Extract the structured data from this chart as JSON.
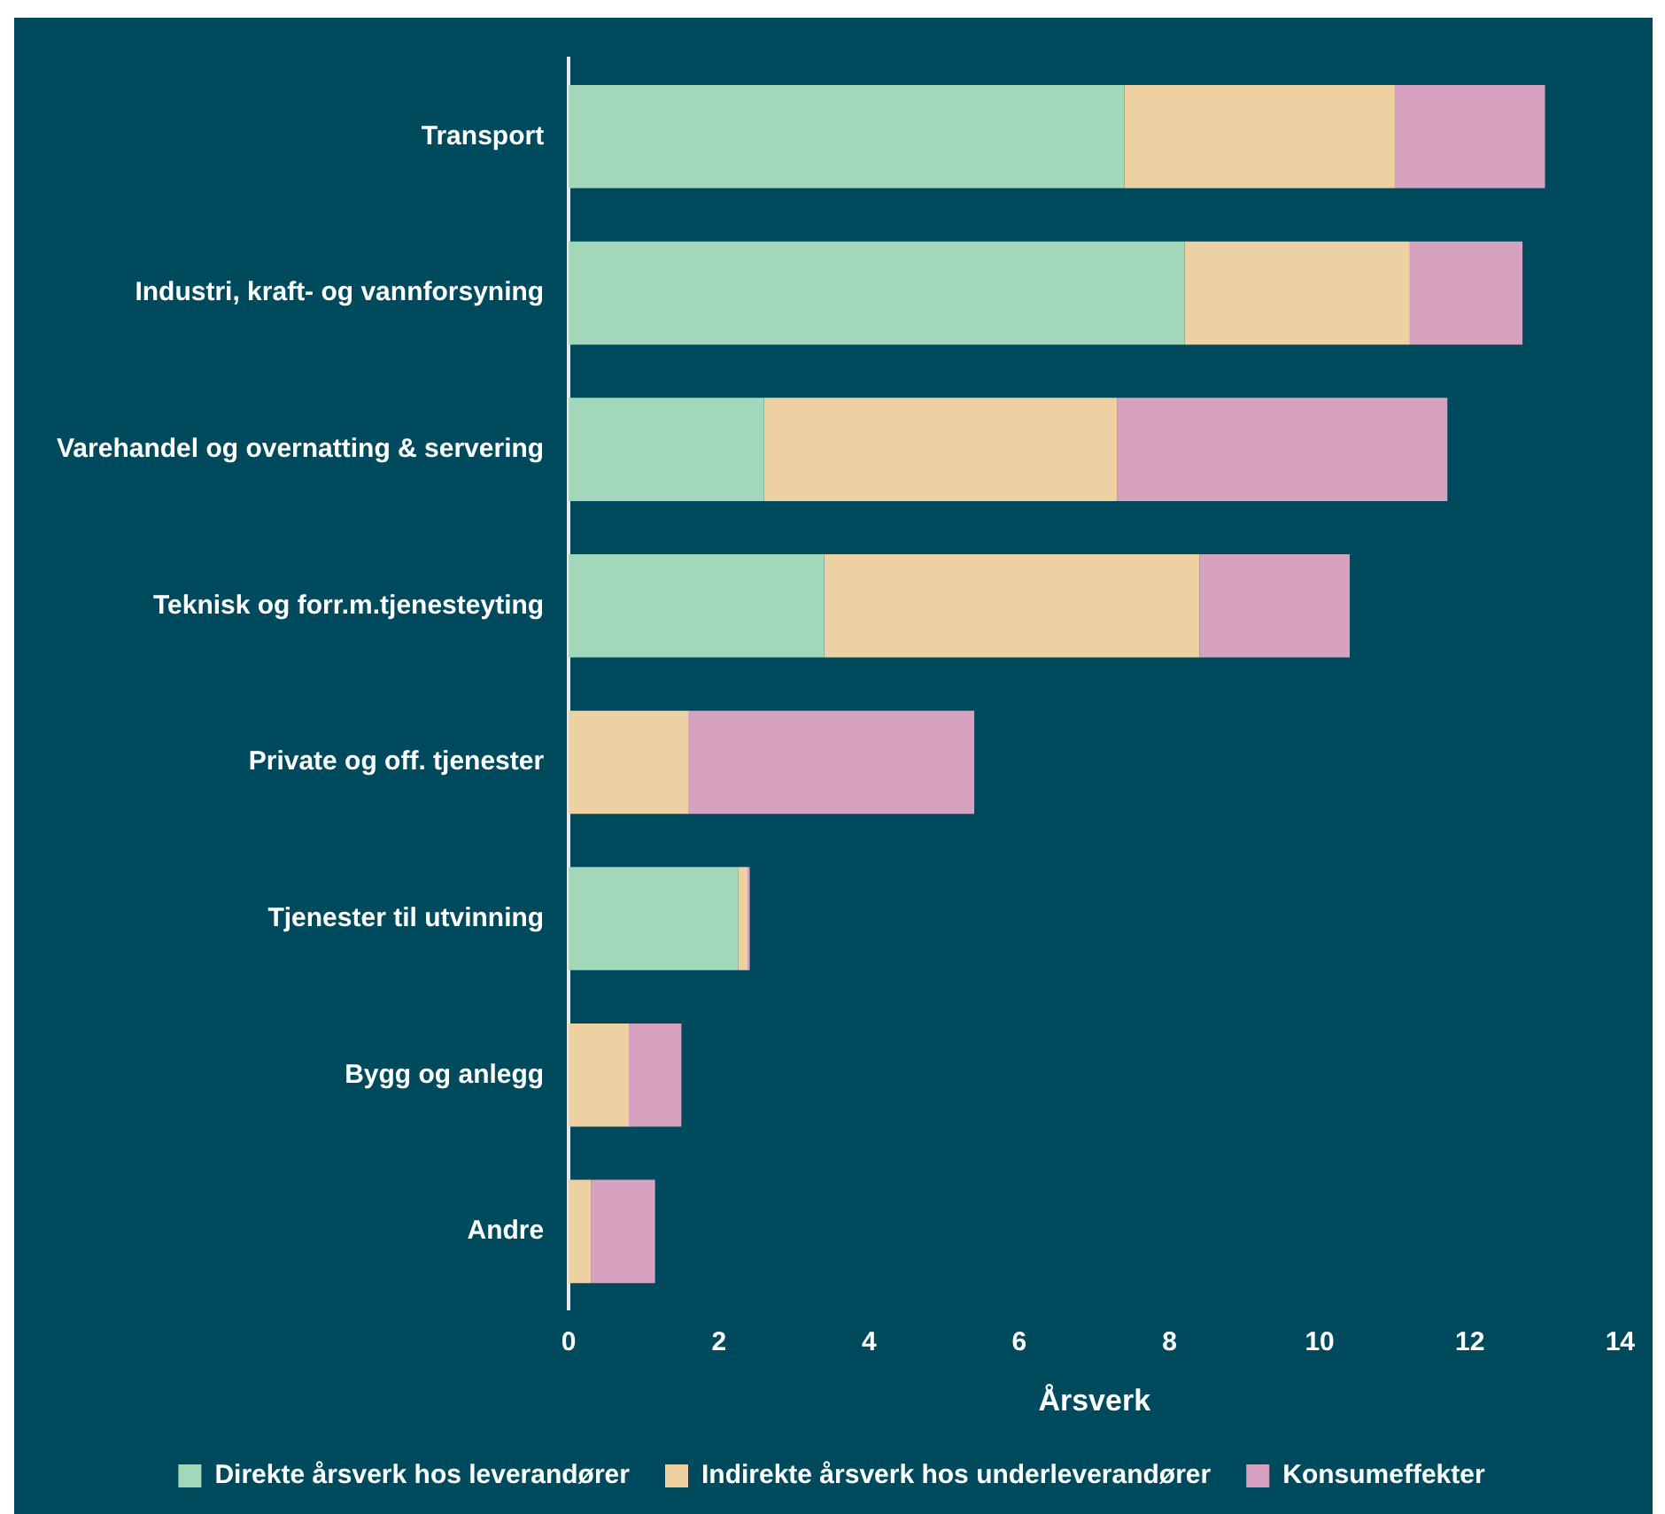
{
  "chart_data": {
    "type": "bar",
    "orientation": "horizontal",
    "stacked": true,
    "xlabel": "Årsverk",
    "categories": [
      "Transport",
      "Industri, kraft- og vannforsyning",
      "Varehandel og overnatting & servering",
      "Teknisk og forr.m.tjenesteyting",
      "Private og off. tjenester",
      "Tjenester til utvinning",
      "Bygg og anlegg",
      "Andre"
    ],
    "series": [
      {
        "name": "Direkte årsverk hos leverandører",
        "color": "#a2d7b9",
        "values": [
          7.4,
          8.2,
          2.6,
          3.4,
          0,
          2.26,
          0,
          0
        ]
      },
      {
        "name": "Indirekte årsverk hos underleverandører",
        "color": "#edd1a3",
        "values": [
          3.6,
          3.0,
          4.7,
          5.0,
          1.6,
          0.12,
          0.8,
          0.3
        ]
      },
      {
        "name": "Konsumeffekter",
        "color": "#d7a1c0",
        "values": [
          2.0,
          1.5,
          4.4,
          2.0,
          3.8,
          0.03,
          0.7,
          0.85
        ]
      }
    ],
    "xlim": [
      0,
      14
    ],
    "xticks": [
      0,
      2,
      4,
      6,
      8,
      10,
      12,
      14
    ],
    "grid": false,
    "legend": "bottom"
  }
}
